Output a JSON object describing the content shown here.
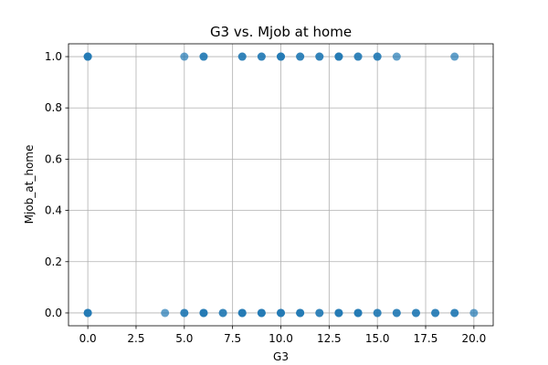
{
  "chart_data": {
    "type": "scatter",
    "title": "G3 vs. Mjob at home",
    "xlabel": "G3",
    "ylabel": "Mjob_at_home",
    "xlim": [
      -1.0,
      21.0
    ],
    "ylim": [
      -0.05,
      1.05
    ],
    "xticks": [
      0.0,
      2.5,
      5.0,
      7.5,
      10.0,
      12.5,
      15.0,
      17.5,
      20.0
    ],
    "xtick_labels": [
      "0.0",
      "2.5",
      "5.0",
      "7.5",
      "10.0",
      "12.5",
      "15.0",
      "17.5",
      "20.0"
    ],
    "yticks": [
      0.0,
      0.2,
      0.4,
      0.6,
      0.8,
      1.0
    ],
    "ytick_labels": [
      "0.0",
      "0.2",
      "0.4",
      "0.6",
      "0.8",
      "1.0"
    ],
    "grid": true,
    "series": [
      {
        "color": "#1f77b4",
        "points": [
          {
            "x": 0,
            "y": 1
          },
          {
            "x": 0,
            "y": 1
          },
          {
            "x": 0,
            "y": 1
          },
          {
            "x": 5,
            "y": 1
          },
          {
            "x": 6,
            "y": 1
          },
          {
            "x": 6,
            "y": 1
          },
          {
            "x": 8,
            "y": 1
          },
          {
            "x": 8,
            "y": 1
          },
          {
            "x": 9,
            "y": 1
          },
          {
            "x": 9,
            "y": 1
          },
          {
            "x": 10,
            "y": 1
          },
          {
            "x": 10,
            "y": 1
          },
          {
            "x": 10,
            "y": 1
          },
          {
            "x": 11,
            "y": 1
          },
          {
            "x": 11,
            "y": 1
          },
          {
            "x": 12,
            "y": 1
          },
          {
            "x": 12,
            "y": 1
          },
          {
            "x": 13,
            "y": 1
          },
          {
            "x": 13,
            "y": 1
          },
          {
            "x": 13,
            "y": 1
          },
          {
            "x": 14,
            "y": 1
          },
          {
            "x": 14,
            "y": 1
          },
          {
            "x": 15,
            "y": 1
          },
          {
            "x": 15,
            "y": 1
          },
          {
            "x": 16,
            "y": 1
          },
          {
            "x": 19,
            "y": 1
          },
          {
            "x": 0,
            "y": 0
          },
          {
            "x": 0,
            "y": 0
          },
          {
            "x": 0,
            "y": 0
          },
          {
            "x": 4,
            "y": 0
          },
          {
            "x": 5,
            "y": 0
          },
          {
            "x": 5,
            "y": 0
          },
          {
            "x": 6,
            "y": 0
          },
          {
            "x": 6,
            "y": 0
          },
          {
            "x": 6,
            "y": 0
          },
          {
            "x": 7,
            "y": 0
          },
          {
            "x": 7,
            "y": 0
          },
          {
            "x": 8,
            "y": 0
          },
          {
            "x": 8,
            "y": 0
          },
          {
            "x": 8,
            "y": 0
          },
          {
            "x": 9,
            "y": 0
          },
          {
            "x": 9,
            "y": 0
          },
          {
            "x": 9,
            "y": 0
          },
          {
            "x": 10,
            "y": 0
          },
          {
            "x": 10,
            "y": 0
          },
          {
            "x": 10,
            "y": 0
          },
          {
            "x": 11,
            "y": 0
          },
          {
            "x": 11,
            "y": 0
          },
          {
            "x": 11,
            "y": 0
          },
          {
            "x": 12,
            "y": 0
          },
          {
            "x": 12,
            "y": 0
          },
          {
            "x": 13,
            "y": 0
          },
          {
            "x": 13,
            "y": 0
          },
          {
            "x": 13,
            "y": 0
          },
          {
            "x": 14,
            "y": 0
          },
          {
            "x": 14,
            "y": 0
          },
          {
            "x": 14,
            "y": 0
          },
          {
            "x": 15,
            "y": 0
          },
          {
            "x": 15,
            "y": 0
          },
          {
            "x": 16,
            "y": 0
          },
          {
            "x": 16,
            "y": 0
          },
          {
            "x": 17,
            "y": 0
          },
          {
            "x": 17,
            "y": 0
          },
          {
            "x": 18,
            "y": 0
          },
          {
            "x": 18,
            "y": 0
          },
          {
            "x": 19,
            "y": 0
          },
          {
            "x": 19,
            "y": 0
          },
          {
            "x": 20,
            "y": 0
          }
        ]
      }
    ]
  }
}
